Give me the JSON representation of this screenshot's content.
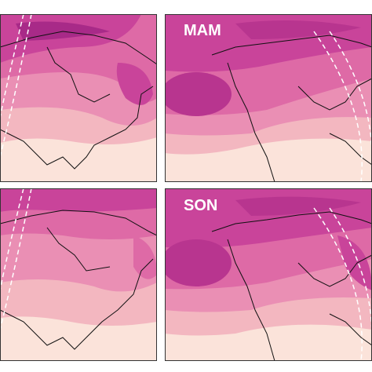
{
  "panels": [
    {
      "label": "MAM"
    },
    {
      "label": "SON"
    }
  ]
}
